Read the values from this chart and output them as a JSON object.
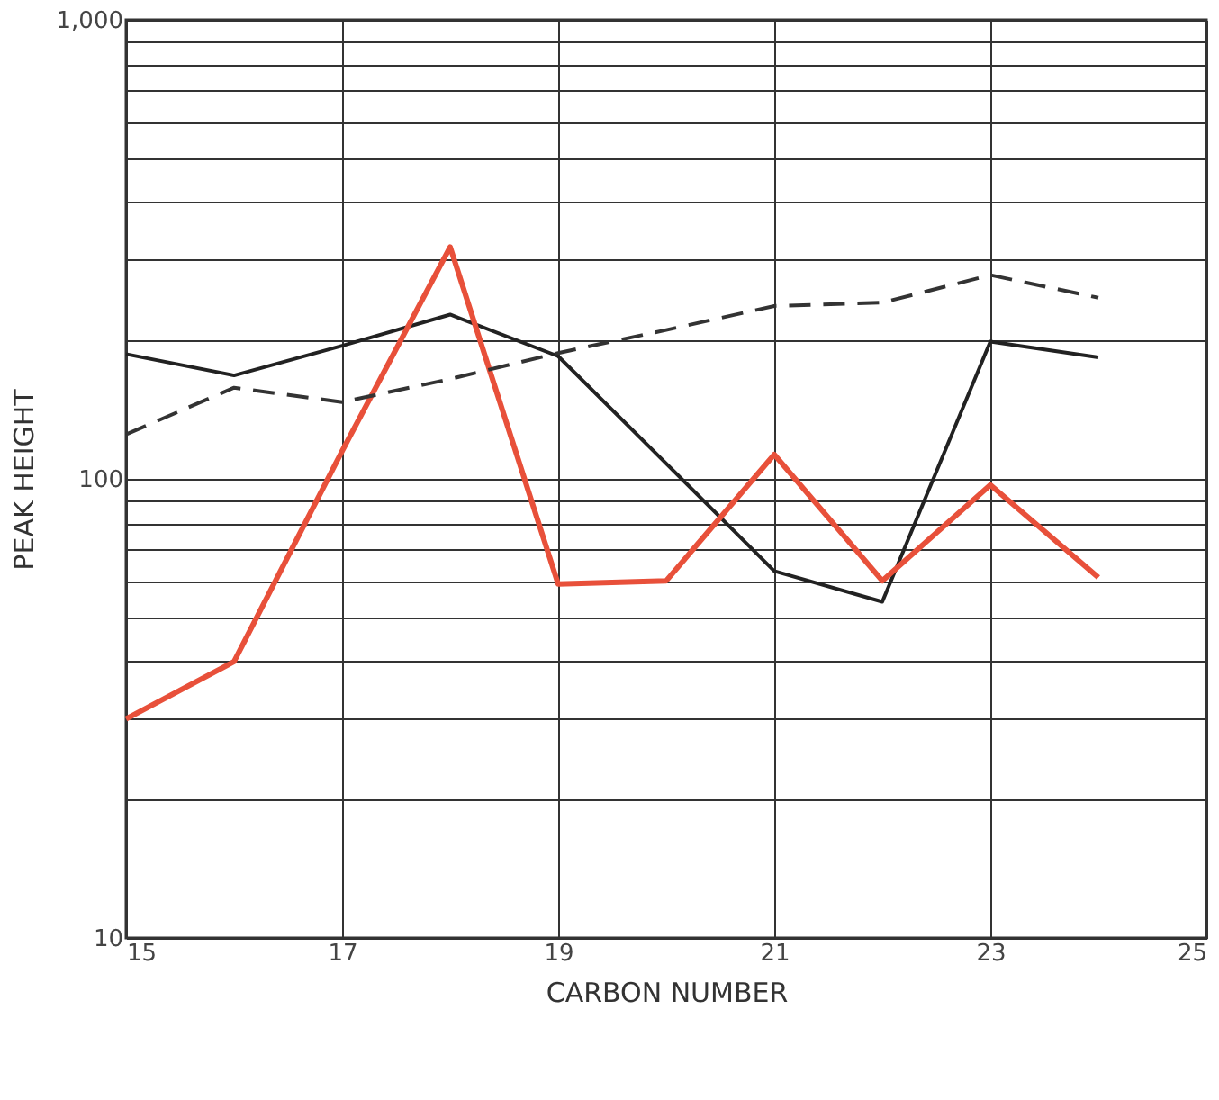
{
  "chart_data": {
    "type": "line",
    "xlabel": "CARBON NUMBER",
    "ylabel": "PEAK HEIGHT",
    "log": "y",
    "grid": true,
    "marker": "none",
    "x": [
      15,
      16,
      17,
      18,
      19,
      20,
      21,
      22,
      23,
      24
    ],
    "xlim": [
      15,
      25
    ],
    "xticks": [
      15,
      17,
      19,
      21,
      23,
      25
    ],
    "ylim": [
      10,
      1000
    ],
    "yticks": [
      10,
      {
        "value": 20,
        "label": null
      },
      {
        "value": 30,
        "label": null
      },
      {
        "value": 40,
        "label": null
      },
      {
        "value": 50,
        "label": null
      },
      {
        "value": 60,
        "label": null
      },
      {
        "value": 70,
        "label": null
      },
      {
        "value": 80,
        "label": null
      },
      {
        "value": 90,
        "label": null
      },
      100,
      {
        "value": 200,
        "label": null
      },
      {
        "value": 300,
        "label": null
      },
      {
        "value": 400,
        "label": null
      },
      {
        "value": 500,
        "label": null
      },
      {
        "value": 600,
        "label": null
      },
      {
        "value": 700,
        "label": null
      },
      {
        "value": 800,
        "label": null
      },
      {
        "value": 900,
        "label": null
      },
      {
        "value": 1000,
        "label": "1,000"
      }
    ],
    "series": [
      {
        "color": "#222222",
        "line_style": "solid",
        "values": [
          187,
          168,
          195,
          228,
          185,
          null,
          63,
          54,
          199,
          184
        ]
      },
      {
        "color": "#e8503a",
        "line_style": "solid",
        "values": [
          30,
          40,
          115,
          320,
          59,
          60,
          113,
          60,
          97,
          61
        ]
      },
      {
        "color": "#333333",
        "line_style": "dashed",
        "values": [
          125,
          158,
          147,
          165,
          188,
          211,
          238,
          242,
          278,
          248
        ]
      }
    ]
  }
}
